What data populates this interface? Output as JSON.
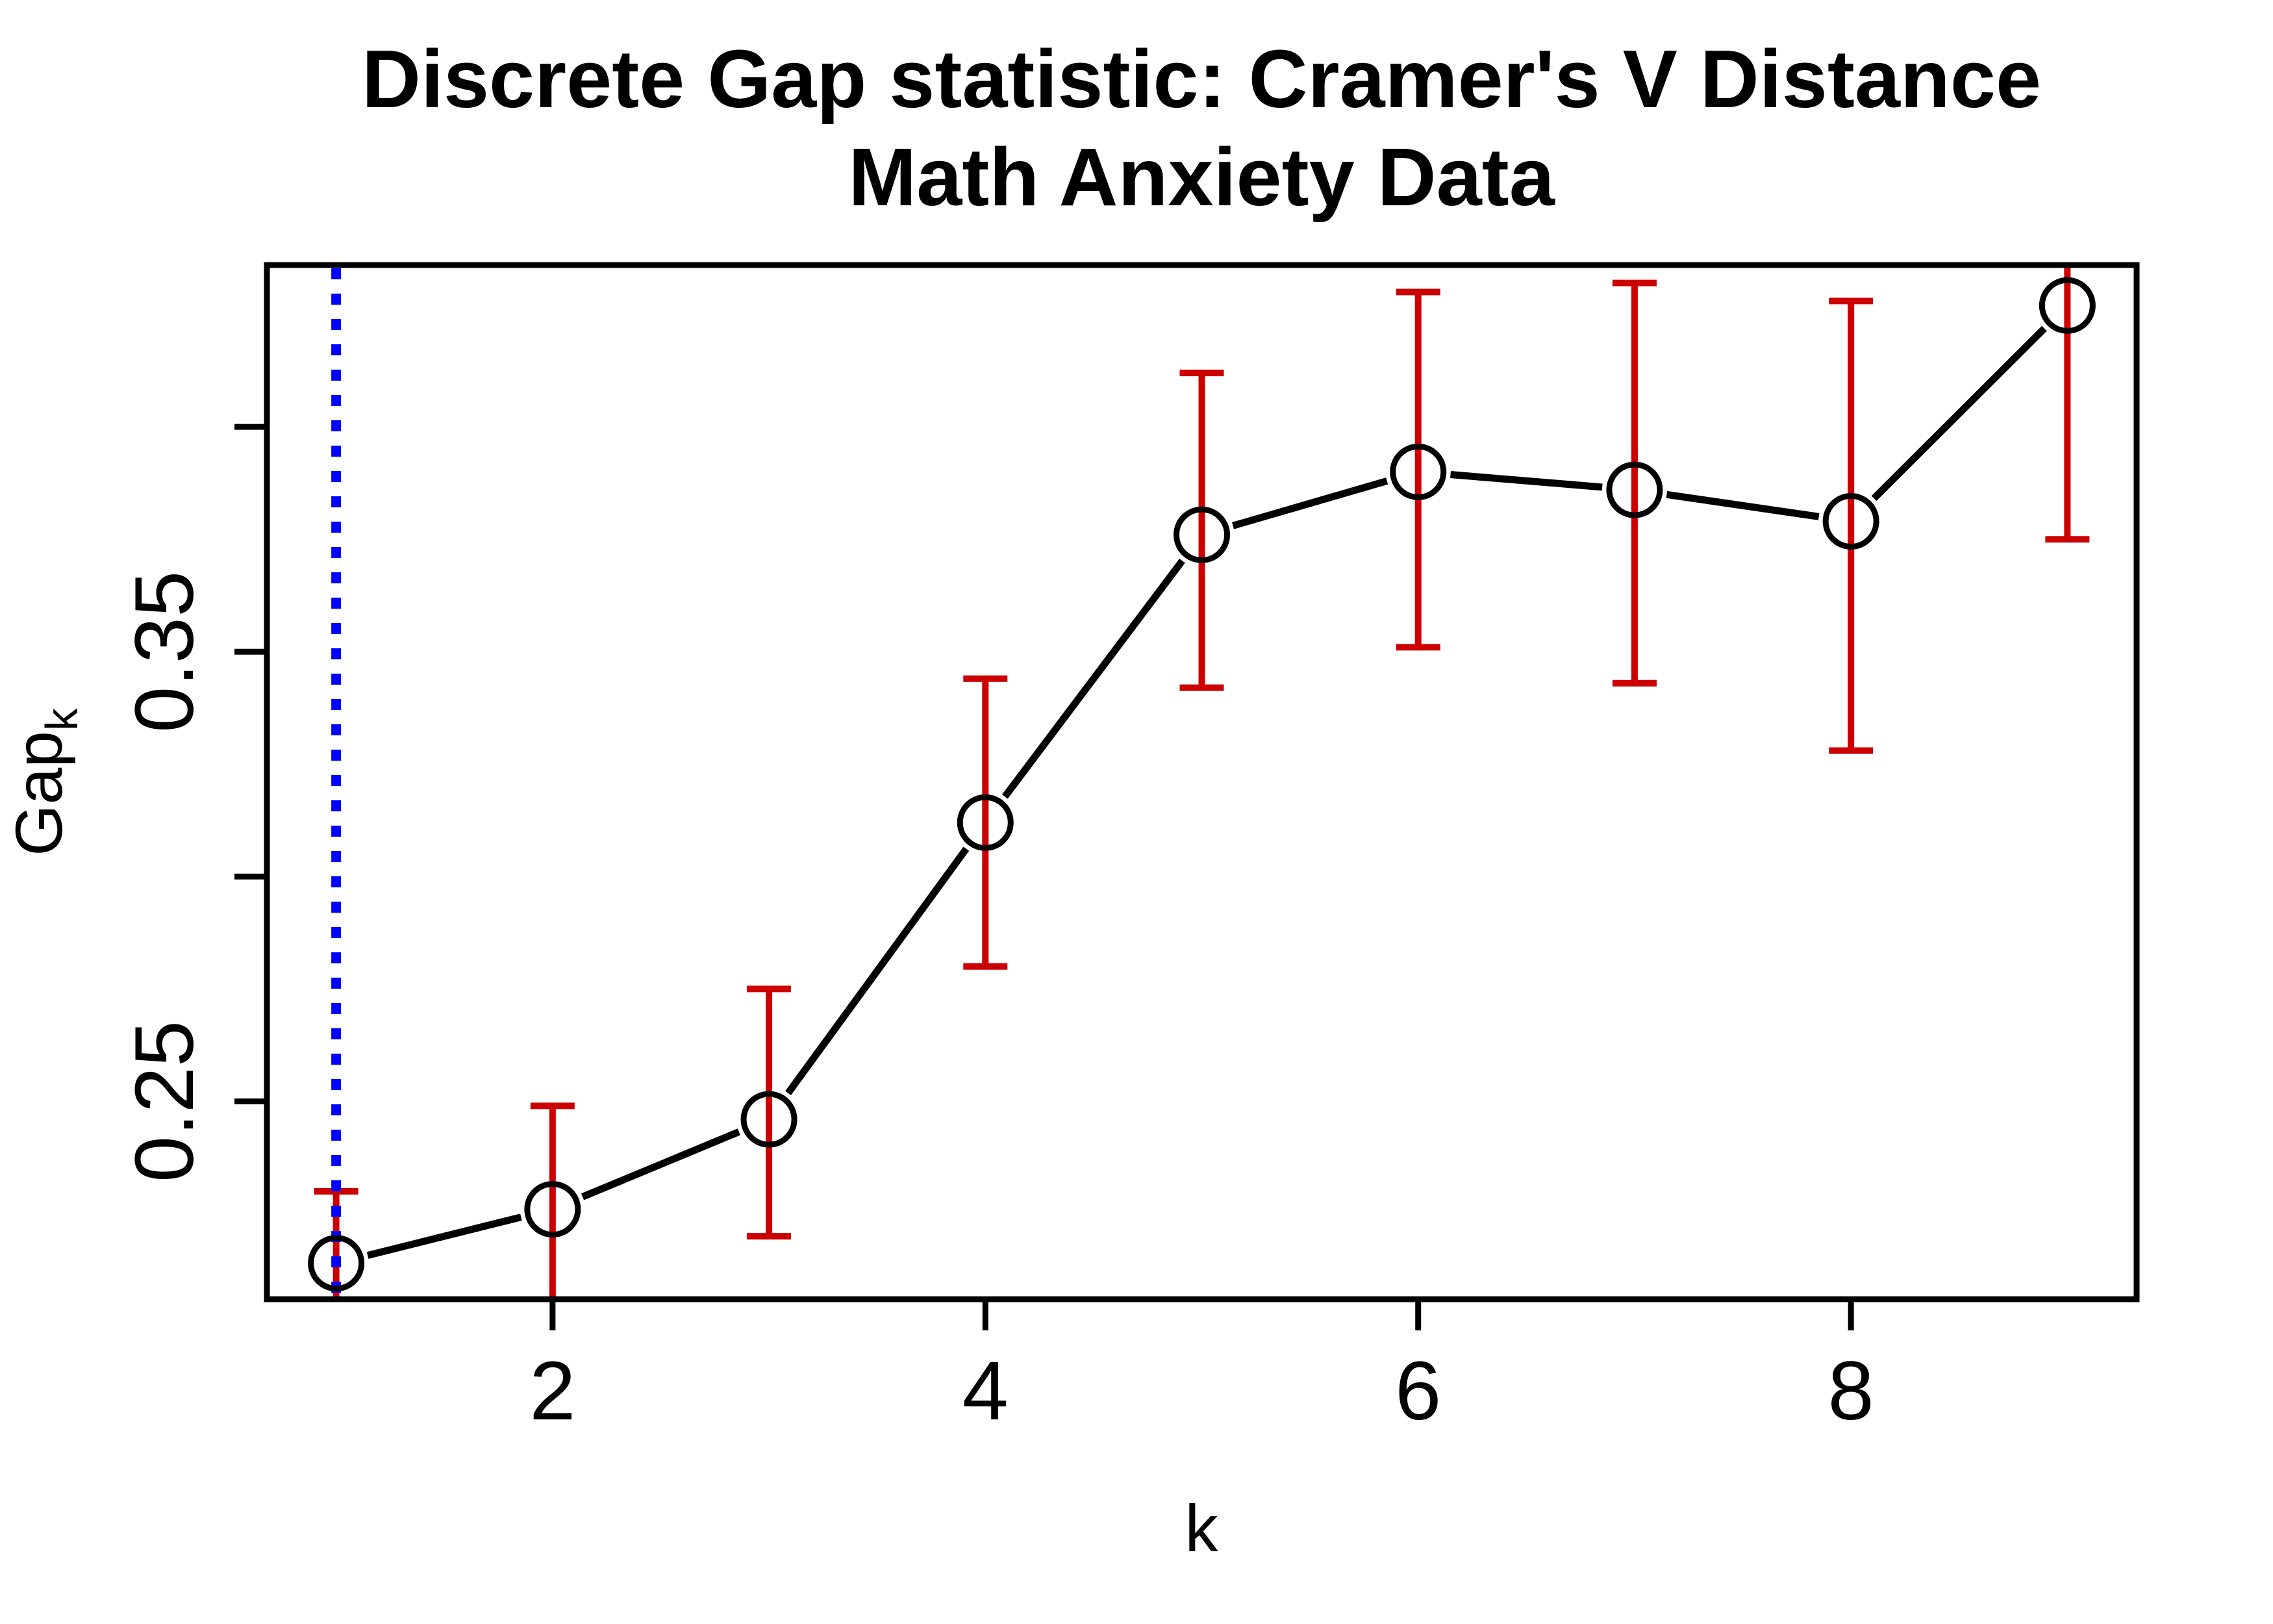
{
  "chart_data": {
    "type": "line",
    "title": "Discrete Gap statistic: Cramer's V Distance",
    "subtitle": "Math Anxiety Data",
    "xlabel": "k",
    "ylabel": "Gap",
    "ylabel_subscript": "k",
    "x": [
      1,
      2,
      3,
      4,
      5,
      6,
      7,
      8,
      9
    ],
    "series": [
      {
        "name": "Gap statistic",
        "values": [
          0.214,
          0.226,
          0.246,
          0.312,
          0.376,
          0.39,
          0.386,
          0.379,
          0.427
        ],
        "marker": "open-circle",
        "color": "#000000"
      }
    ],
    "error_bars": {
      "upper": [
        0.23,
        0.249,
        0.275,
        0.344,
        0.412,
        0.43,
        0.432,
        0.428,
        0.478
      ],
      "lower": [
        0.199,
        0.202,
        0.22,
        0.28,
        0.342,
        0.351,
        0.343,
        0.328,
        0.375
      ],
      "color": "#CC0000"
    },
    "reference_line": {
      "orientation": "vertical",
      "x": 1,
      "style": "dotted",
      "color": "#0000FF"
    },
    "xlim": [
      0.68,
      9.32
    ],
    "ylim": [
      0.206,
      0.436
    ],
    "x_ticks": [
      2,
      4,
      6,
      8
    ],
    "x_tick_labels": [
      "2",
      "4",
      "6",
      "8"
    ],
    "y_ticks": [
      0.25,
      0.3,
      0.35,
      0.4
    ],
    "y_tick_labels": [
      "0.25",
      "",
      "0.35",
      ""
    ],
    "grid": false,
    "legend": "none",
    "background": "#FFFFFF",
    "text_color": "#000000"
  }
}
